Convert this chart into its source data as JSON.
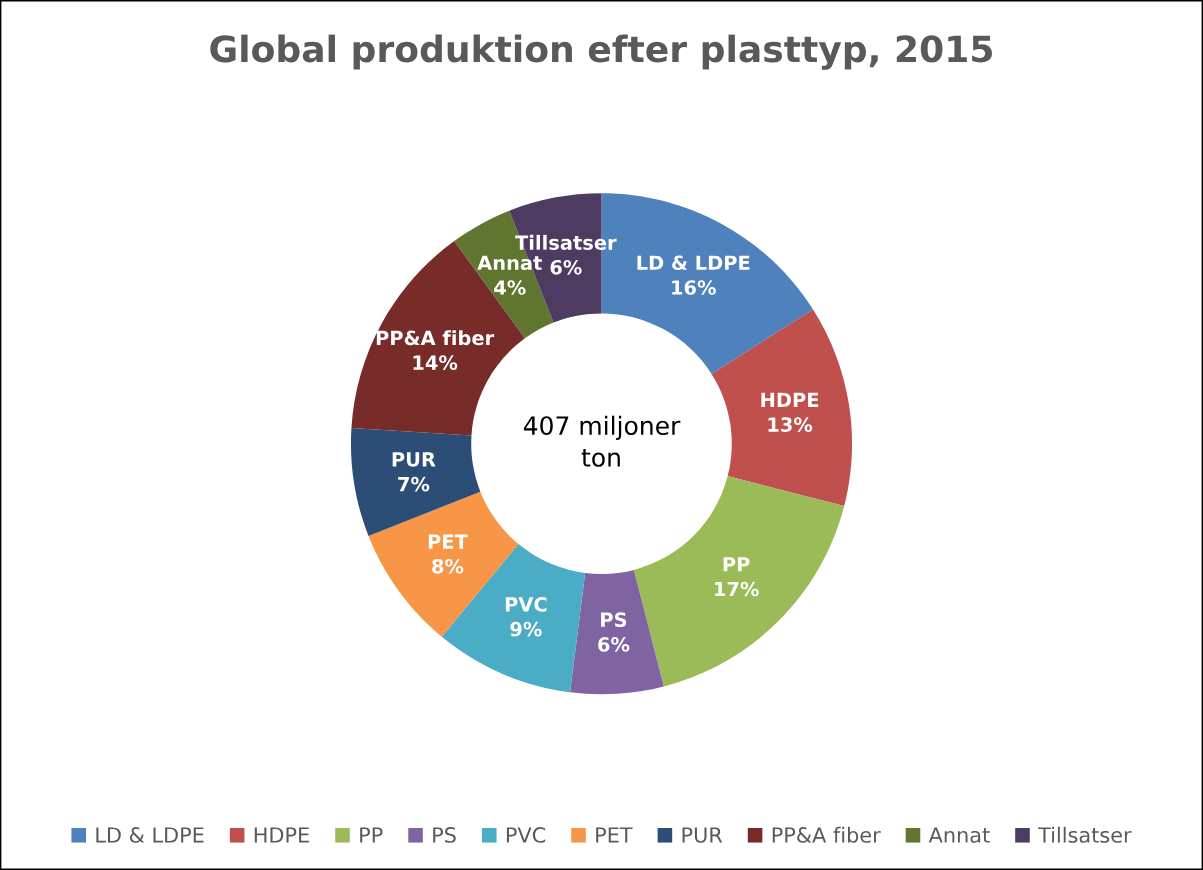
{
  "chart_data": {
    "type": "donut",
    "title": "Global produktion efter plasttyp, 2015",
    "categories": [
      "LD & LDPE",
      "HDPE",
      "PP",
      "PS",
      "PVC",
      "PET",
      "PUR",
      "PP&A fiber",
      "Annat",
      "Tillsatser"
    ],
    "values": [
      16,
      13,
      17,
      6,
      9,
      8,
      7,
      14,
      4,
      6
    ],
    "value_labels": [
      "16%",
      "13%",
      "17%",
      "6%",
      "9%",
      "8%",
      "7%",
      "14%",
      "4%",
      "6%"
    ],
    "colors": [
      "#4f81bd",
      "#c0504d",
      "#9bbb59",
      "#8064a2",
      "#4bacc6",
      "#f79646",
      "#2c4d75",
      "#772c2a",
      "#5f7530",
      "#4d3b62"
    ],
    "annotations": [
      "407 miljoner\nton"
    ],
    "legend": "bottom"
  }
}
